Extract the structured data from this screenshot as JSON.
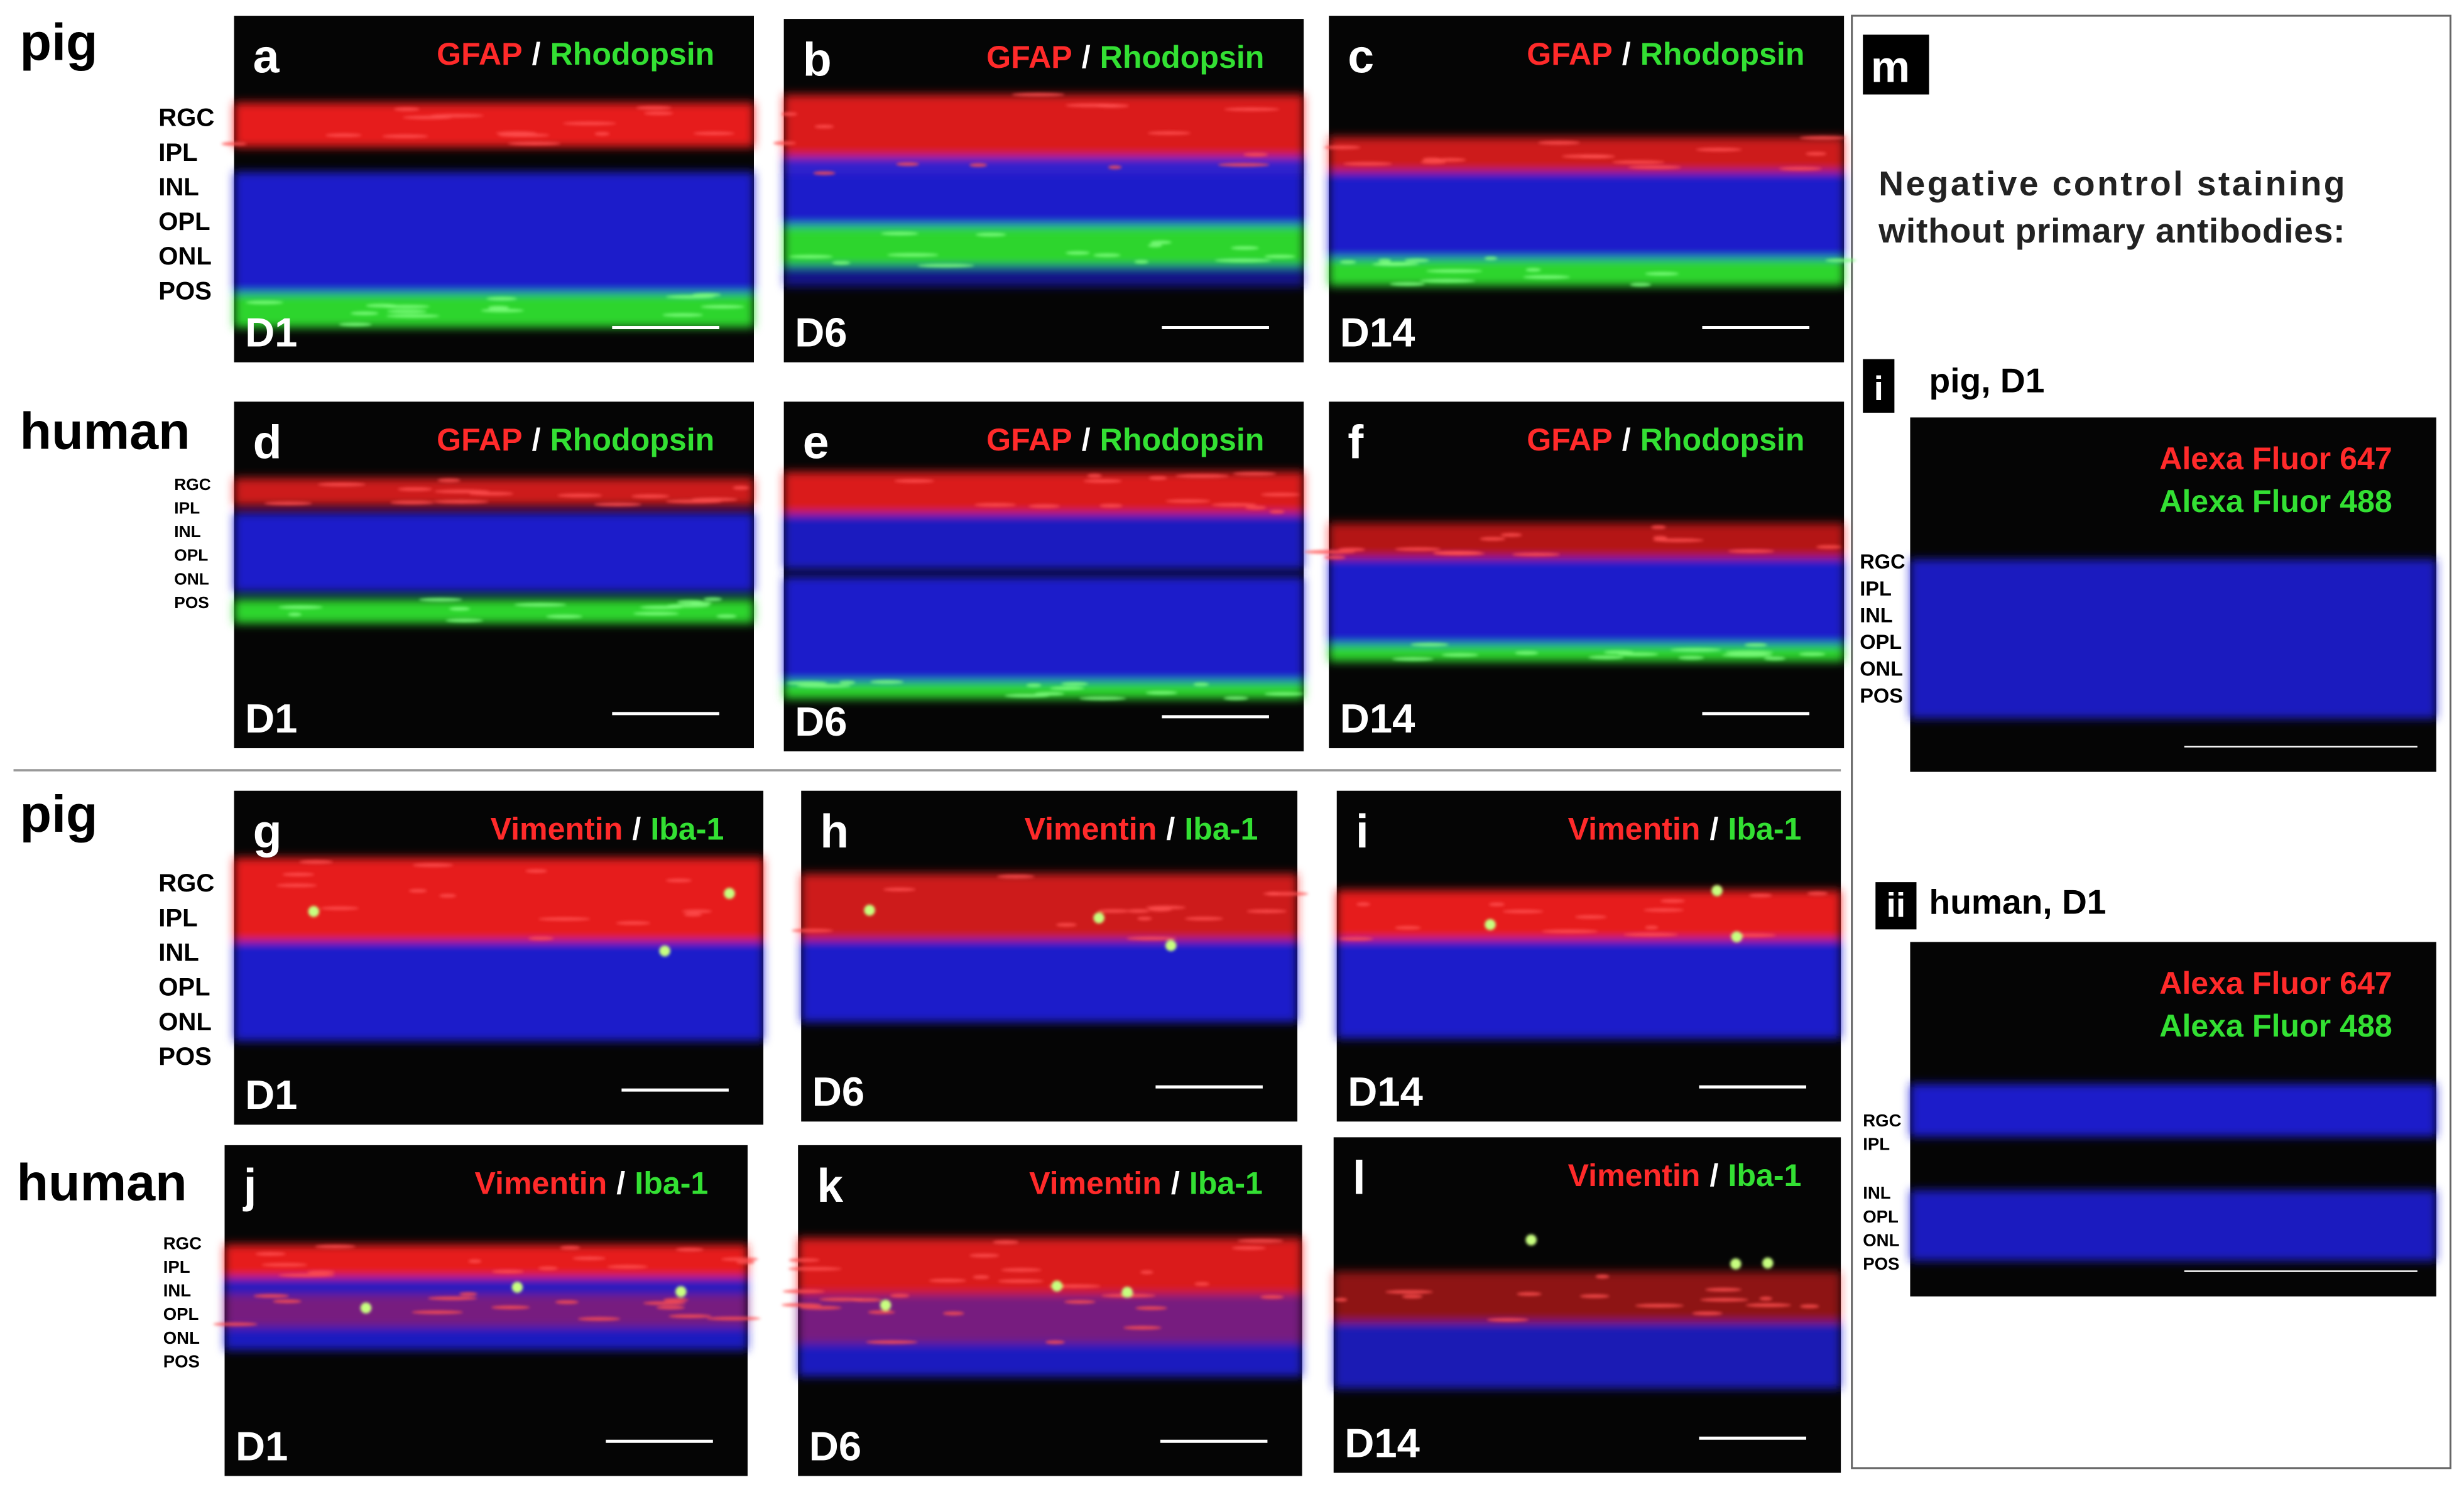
{
  "row_labels": [
    "pig",
    "human",
    "pig",
    "human"
  ],
  "panels": [
    {
      "letter": "a",
      "stain_red": "GFAP",
      "separator": "/",
      "stain_green": "Rhodopsin",
      "day": "D1"
    },
    {
      "letter": "b",
      "stain_red": "GFAP",
      "separator": "/",
      "stain_green": "Rhodopsin",
      "day": "D6"
    },
    {
      "letter": "c",
      "stain_red": "GFAP",
      "separator": "/",
      "stain_green": "Rhodopsin",
      "day": "D14"
    },
    {
      "letter": "d",
      "stain_red": "GFAP",
      "separator": "/",
      "stain_green": "Rhodopsin",
      "day": "D1"
    },
    {
      "letter": "e",
      "stain_red": "GFAP",
      "separator": "/",
      "stain_green": "Rhodopsin",
      "day": "D6"
    },
    {
      "letter": "f",
      "stain_red": "GFAP",
      "separator": "/",
      "stain_green": "Rhodopsin",
      "day": "D14"
    },
    {
      "letter": "g",
      "stain_red": "Vimentin",
      "separator": "/",
      "stain_green": "Iba-1",
      "day": "D1"
    },
    {
      "letter": "h",
      "stain_red": "Vimentin",
      "separator": "/",
      "stain_green": "Iba-1",
      "day": "D6"
    },
    {
      "letter": "i",
      "stain_red": "Vimentin",
      "separator": "/",
      "stain_green": "Iba-1",
      "day": "D14"
    },
    {
      "letter": "j",
      "stain_red": "Vimentin",
      "separator": "/",
      "stain_green": "Iba-1",
      "day": "D1"
    },
    {
      "letter": "k",
      "stain_red": "Vimentin",
      "separator": "/",
      "stain_green": "Iba-1",
      "day": "D6"
    },
    {
      "letter": "l",
      "stain_red": "Vimentin",
      "separator": "/",
      "stain_green": "Iba-1",
      "day": "D14"
    }
  ],
  "layer_labels": [
    [
      "RGC",
      "IPL",
      "INL",
      "OPL",
      "ONL",
      "POS"
    ],
    [
      "RGC",
      "IPL",
      "INL",
      "OPL",
      "ONL",
      "POS"
    ],
    [
      "RGC",
      "IPL",
      "INL",
      "OPL",
      "ONL",
      "POS"
    ],
    [
      "RGC",
      "IPL",
      "INL",
      "OPL",
      "ONL",
      "POS"
    ]
  ],
  "control": {
    "letter": "m",
    "text": [
      "Negative control staining",
      "without primary antibodies:"
    ],
    "subpanels": [
      {
        "numeral": "i",
        "title": "pig, D1",
        "red_label": "Alexa Fluor 647",
        "green_label": "Alexa Fluor 488",
        "layers": [
          "RGC",
          "IPL",
          "INL",
          "OPL",
          "ONL",
          "POS"
        ]
      },
      {
        "numeral": "ii",
        "title": "human, D1",
        "red_label": "Alexa Fluor 647",
        "green_label": "Alexa Fluor 488",
        "layers": [
          "RGC",
          "IPL",
          "INL",
          "OPL",
          "ONL",
          "POS"
        ]
      }
    ]
  }
}
